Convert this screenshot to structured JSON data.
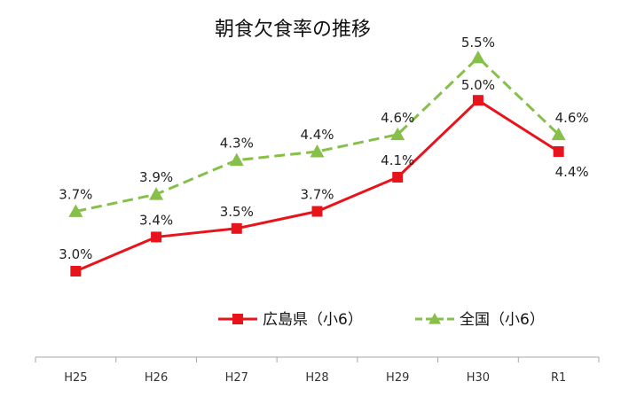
{
  "chart_data": {
    "type": "line",
    "title": "朝食欠食率の推移",
    "categories": [
      "H25",
      "H26",
      "H27",
      "H28",
      "H29",
      "H30",
      "R1"
    ],
    "series": [
      {
        "name": "広島県（小6）",
        "values": [
          3.0,
          3.4,
          3.5,
          3.7,
          4.1,
          5.0,
          4.4
        ],
        "labels": [
          "3.0%",
          "3.4%",
          "3.5%",
          "3.7%",
          "4.1%",
          "5.0%",
          "4.4%"
        ],
        "color": "#e8141c",
        "line_style": "solid",
        "marker": "square"
      },
      {
        "name": "全国（小6）",
        "values": [
          3.7,
          3.9,
          4.3,
          4.4,
          4.6,
          5.5,
          4.6
        ],
        "labels": [
          "3.7%",
          "3.9%",
          "4.3%",
          "4.4%",
          "4.6%",
          "5.5%",
          "4.6%"
        ],
        "color": "#86c04a",
        "line_style": "dashed",
        "marker": "triangle"
      }
    ],
    "grid": false,
    "legend_position": "bottom-center"
  }
}
